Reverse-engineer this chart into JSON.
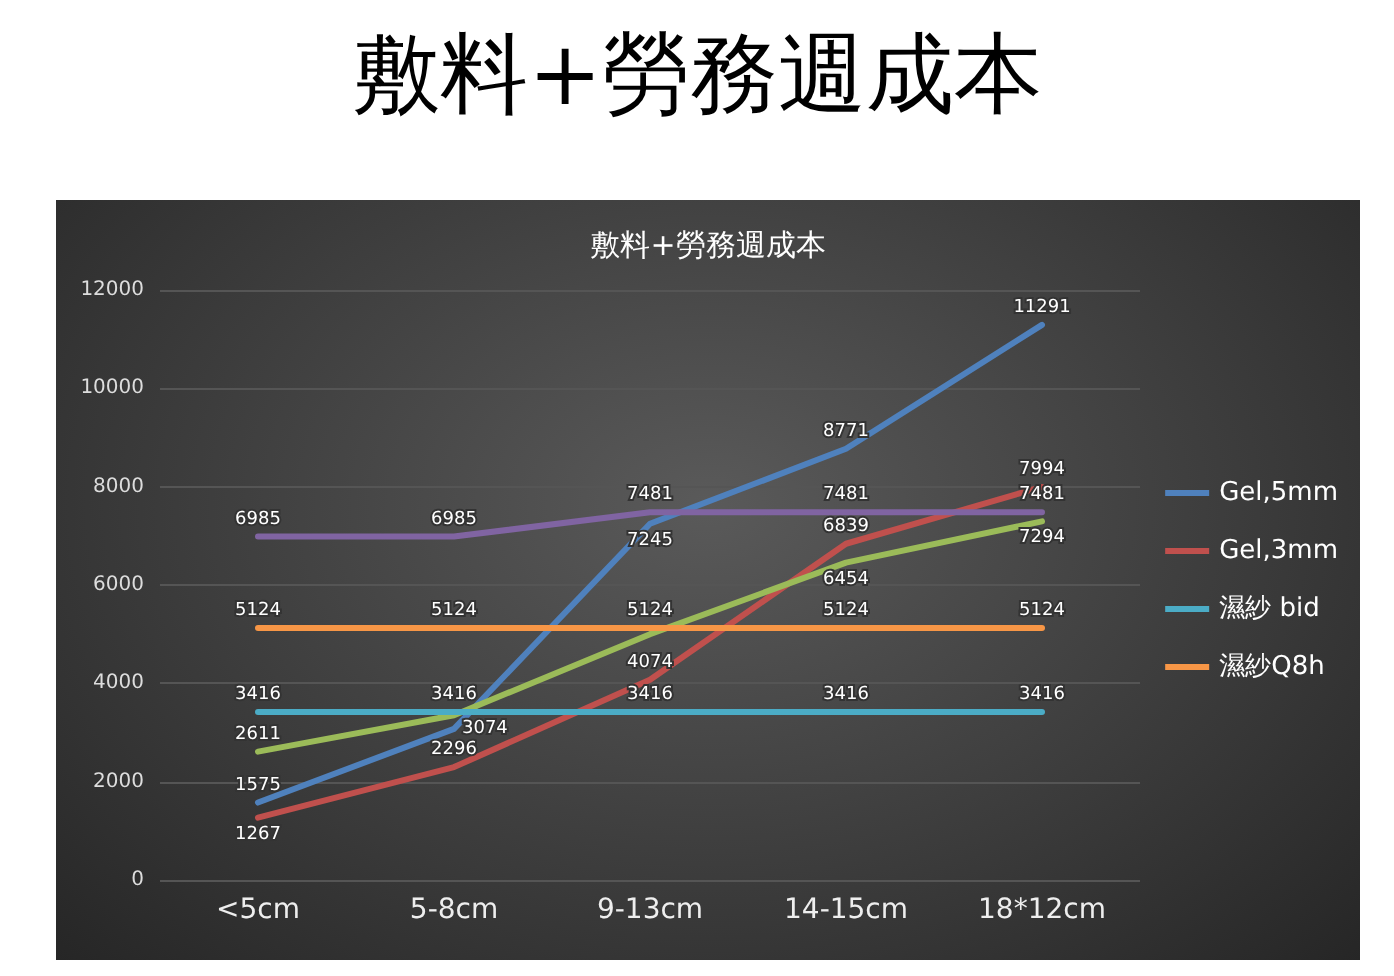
{
  "chart_data": {
    "type": "line",
    "title": "敷料+勞務週成本",
    "subtitle": "敷料+勞務週成本",
    "categories": [
      "<5cm",
      "5-8cm",
      "9-13cm",
      "14-15cm",
      "18*12cm"
    ],
    "series": [
      {
        "name": "Gel,5mm",
        "color": "#4f81bd",
        "values": [
          1575,
          3074,
          7245,
          8771,
          11291
        ]
      },
      {
        "name": "Gel,3mm",
        "color": "#c0504d",
        "values": [
          1267,
          2296,
          4074,
          6839,
          7994
        ]
      },
      {
        "color": "#9bbb59",
        "values": [
          2611,
          3350,
          5000,
          6454,
          7294
        ],
        "value_labels": [
          "2611",
          null,
          null,
          "6454",
          "7294"
        ]
      },
      {
        "color": "#8064a2",
        "values": [
          6985,
          6985,
          7481,
          7481,
          7481
        ]
      },
      {
        "name": "濕紗 bid",
        "color": "#4bacc6",
        "values": [
          3416,
          3416,
          3416,
          3416,
          3416
        ]
      },
      {
        "name": "濕紗Q8h",
        "color": "#f79646",
        "values": [
          5124,
          5124,
          5124,
          5124,
          5124
        ]
      }
    ],
    "ylim": [
      0,
      12000
    ],
    "yticks": [
      0,
      2000,
      4000,
      6000,
      8000,
      10000,
      12000
    ],
    "grid": "y",
    "legend": "right",
    "marker": "none",
    "line_style": "solid",
    "data_labels": true
  }
}
